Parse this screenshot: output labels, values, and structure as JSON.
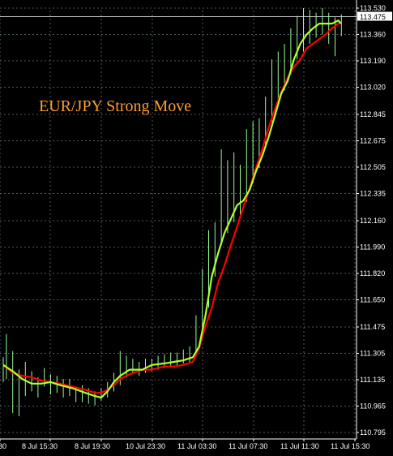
{
  "chart_data": {
    "type": "line",
    "title": "EUR/JPY Strong Move",
    "current_price_label": "113.475",
    "current_price": 113.475,
    "ylim": [
      110.795,
      113.53
    ],
    "grid": true,
    "y_ticks": [
      "113.530",
      "113.360",
      "113.190",
      "113.020",
      "112.845",
      "112.675",
      "112.505",
      "112.335",
      "112.160",
      "111.990",
      "111.820",
      "111.650",
      "111.475",
      "111.305",
      "111.135",
      "110.965",
      "110.795"
    ],
    "y_tick_values": [
      113.53,
      113.36,
      113.19,
      113.02,
      112.845,
      112.675,
      112.505,
      112.335,
      112.16,
      111.99,
      111.82,
      111.65,
      111.475,
      111.305,
      111.135,
      110.965,
      110.795
    ],
    "x_ticks": [
      "30",
      "8 Jul 15:30",
      "8 Jul 19:30",
      "10 Jul 23:30",
      "11 Jul 03:30",
      "11 Jul 07:30",
      "11 Jul 11:30",
      "11 Jul 15:30"
    ],
    "x_tick_bar_index": [
      0,
      16,
      32,
      48,
      64,
      80,
      96,
      112
    ],
    "bars_count": 118,
    "colors": {
      "background": "#000000",
      "grid": "#4a5a5a",
      "price_bars": "#98fb98",
      "fast_ma": "#adff2f",
      "slow_ma": "#ff0000",
      "title": "#ff9d2e",
      "axis_text": "#ffffff"
    },
    "series": [
      {
        "kind": "fast_ma",
        "points": [
          [
            0,
            111.23
          ],
          [
            3,
            111.19
          ],
          [
            6,
            111.14
          ],
          [
            9,
            111.11
          ],
          [
            12,
            111.11
          ],
          [
            15,
            111.12
          ],
          [
            18,
            111.1
          ],
          [
            22,
            111.08
          ],
          [
            26,
            111.05
          ],
          [
            29,
            111.03
          ],
          [
            31,
            111.02
          ],
          [
            33,
            111.06
          ],
          [
            35,
            111.12
          ],
          [
            37,
            111.16
          ],
          [
            40,
            111.2
          ],
          [
            44,
            111.2
          ],
          [
            47,
            111.23
          ],
          [
            51,
            111.24
          ],
          [
            54,
            111.25
          ],
          [
            57,
            111.26
          ],
          [
            60,
            111.28
          ],
          [
            62,
            111.35
          ],
          [
            64,
            111.55
          ],
          [
            66,
            111.8
          ],
          [
            68,
            111.95
          ],
          [
            70,
            112.08
          ],
          [
            72,
            112.17
          ],
          [
            74,
            112.26
          ],
          [
            76,
            112.29
          ],
          [
            78,
            112.36
          ],
          [
            80,
            112.48
          ],
          [
            82,
            112.58
          ],
          [
            84,
            112.7
          ],
          [
            86,
            112.84
          ],
          [
            88,
            112.98
          ],
          [
            90,
            113.06
          ],
          [
            92,
            113.2
          ],
          [
            94,
            113.3
          ],
          [
            96,
            113.36
          ],
          [
            98,
            113.4
          ],
          [
            100,
            113.43
          ],
          [
            102,
            113.43
          ],
          [
            104,
            113.43
          ],
          [
            106,
            113.45
          ],
          [
            107,
            113.43
          ]
        ]
      },
      {
        "kind": "slow_ma",
        "points": [
          [
            0,
            111.23
          ],
          [
            3,
            111.18
          ],
          [
            6,
            111.16
          ],
          [
            9,
            111.15
          ],
          [
            12,
            111.13
          ],
          [
            15,
            111.12
          ],
          [
            18,
            111.11
          ],
          [
            22,
            111.09
          ],
          [
            26,
            111.07
          ],
          [
            29,
            111.05
          ],
          [
            31,
            111.05
          ],
          [
            33,
            111.07
          ],
          [
            35,
            111.1
          ],
          [
            37,
            111.14
          ],
          [
            40,
            111.17
          ],
          [
            44,
            111.2
          ],
          [
            47,
            111.2
          ],
          [
            51,
            111.22
          ],
          [
            54,
            111.22
          ],
          [
            57,
            111.23
          ],
          [
            60,
            111.25
          ],
          [
            62,
            111.34
          ],
          [
            64,
            111.48
          ],
          [
            66,
            111.6
          ],
          [
            68,
            111.76
          ],
          [
            70,
            111.87
          ],
          [
            72,
            112.0
          ],
          [
            74,
            112.12
          ],
          [
            76,
            112.25
          ],
          [
            78,
            112.37
          ],
          [
            80,
            112.5
          ],
          [
            82,
            112.62
          ],
          [
            84,
            112.76
          ],
          [
            86,
            112.88
          ],
          [
            88,
            112.99
          ],
          [
            90,
            113.08
          ],
          [
            92,
            113.15
          ],
          [
            94,
            113.2
          ],
          [
            96,
            113.27
          ],
          [
            98,
            113.3
          ],
          [
            100,
            113.33
          ],
          [
            102,
            113.36
          ],
          [
            104,
            113.4
          ],
          [
            106,
            113.43
          ],
          [
            107,
            113.44
          ]
        ]
      },
      {
        "kind": "price_bars_hl",
        "points": [
          [
            0,
            111.28,
            111.12
          ],
          [
            1,
            111.43,
            111.14
          ],
          [
            3,
            111.32,
            110.92
          ],
          [
            5,
            111.2,
            110.9
          ],
          [
            7,
            111.25,
            111.03
          ],
          [
            9,
            111.19,
            111.06
          ],
          [
            11,
            111.15,
            111.02
          ],
          [
            13,
            111.21,
            111.09
          ],
          [
            15,
            111.17,
            111.04
          ],
          [
            17,
            111.16,
            111.05
          ],
          [
            19,
            111.14,
            111.02
          ],
          [
            21,
            111.14,
            111.03
          ],
          [
            23,
            111.09,
            110.99
          ],
          [
            25,
            111.1,
            110.99
          ],
          [
            27,
            111.08,
            110.98
          ],
          [
            29,
            111.06,
            110.97
          ],
          [
            31,
            111.08,
            111.0
          ],
          [
            33,
            111.12,
            111.02
          ],
          [
            35,
            111.18,
            111.06
          ],
          [
            37,
            111.32,
            111.1
          ],
          [
            39,
            111.29,
            111.15
          ],
          [
            41,
            111.27,
            111.17
          ],
          [
            43,
            111.25,
            111.16
          ],
          [
            45,
            111.27,
            111.18
          ],
          [
            47,
            111.27,
            111.19
          ],
          [
            49,
            111.29,
            111.2
          ],
          [
            51,
            111.3,
            111.21
          ],
          [
            53,
            111.31,
            111.22
          ],
          [
            55,
            111.31,
            111.23
          ],
          [
            57,
            111.33,
            111.24
          ],
          [
            59,
            111.35,
            111.25
          ],
          [
            61,
            111.55,
            111.3
          ],
          [
            63,
            111.85,
            111.4
          ],
          [
            65,
            112.1,
            111.6
          ],
          [
            67,
            112.15,
            111.8
          ],
          [
            69,
            112.62,
            112.0
          ],
          [
            71,
            112.55,
            112.08
          ],
          [
            73,
            112.6,
            112.15
          ],
          [
            75,
            112.52,
            112.2
          ],
          [
            77,
            112.75,
            112.28
          ],
          [
            79,
            112.8,
            112.4
          ],
          [
            81,
            112.82,
            112.5
          ],
          [
            83,
            112.96,
            112.65
          ],
          [
            85,
            113.2,
            112.8
          ],
          [
            87,
            113.25,
            112.92
          ],
          [
            89,
            113.3,
            113.0
          ],
          [
            91,
            113.4,
            113.1
          ],
          [
            93,
            113.48,
            113.2
          ],
          [
            95,
            113.53,
            113.25
          ],
          [
            97,
            113.52,
            113.3
          ],
          [
            99,
            113.5,
            113.34
          ],
          [
            101,
            113.53,
            113.36
          ],
          [
            103,
            113.5,
            113.3
          ],
          [
            105,
            113.47,
            113.22
          ],
          [
            107,
            113.49,
            113.35
          ]
        ]
      }
    ]
  }
}
